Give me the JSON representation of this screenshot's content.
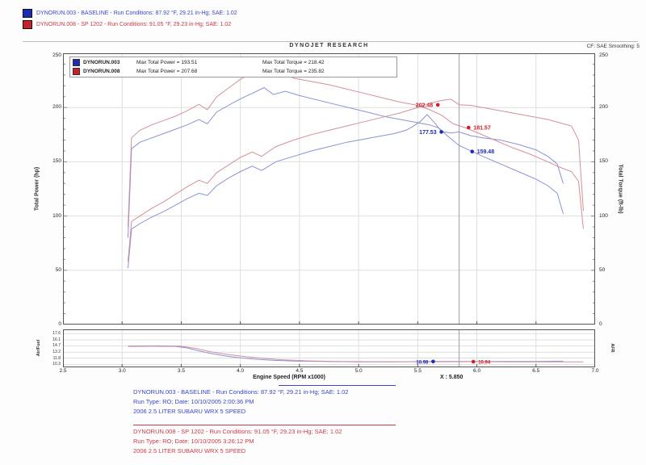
{
  "header_legend": {
    "runs": [
      {
        "swatch": "#1c2bb8",
        "text_color": "#3a46c8",
        "text": "DYNORUN.003 - BASELINE  -  Run Conditions: 87.92 °F, 29.21 in-Hg; SAE: 1.02"
      },
      {
        "swatch": "#c8202c",
        "text_color": "#cc3a46",
        "text": "DYNORUN.008 - SP 1202  -  Run Conditions: 91.05 °F, 29.23 in-Hg; SAE: 1.02"
      }
    ]
  },
  "chart_header": {
    "title": "DYNOJET RESEARCH",
    "correction": "CF: SAE    Smoothing: 5"
  },
  "inchart_legend": [
    {
      "swatch": "#1c2bb8",
      "run": "DYNORUN.003",
      "power": "Max Total Power = 193.51",
      "torque": "Max Total Torque = 218.42"
    },
    {
      "swatch": "#c8202c",
      "run": "DYNORUN.008",
      "power": "Max Total Power = 207.68",
      "torque": "Max Total Torque = 235.82"
    }
  ],
  "cursor_readout": "X : 5.850",
  "chart_data": [
    {
      "type": "line",
      "title": "DYNOJET RESEARCH",
      "xlabel": "Engine Speed (RPM x1000)",
      "ylabel": "Total Power (hp)",
      "ylabel_right": "Total Torque (ft-lb)",
      "xlim": [
        2.5,
        7.0
      ],
      "ylim": [
        0,
        250
      ],
      "x_ticks": [
        "2.5",
        "3.0",
        "3.5",
        "4.0",
        "4.5",
        "5.0",
        "5.5",
        "6.0",
        "6.5",
        "7.0"
      ],
      "y_ticks": [
        "250",
        "200",
        "150",
        "100",
        "50",
        "0"
      ],
      "grid": true,
      "legend_position": "top-left",
      "minor_step": 10,
      "cursor_x": 5.85,
      "marker_font": 7,
      "series": [
        {
          "name": "DYNORUN.003 Total Power (hp)",
          "color": "#8a92d4",
          "points": [
            [
              3.05,
              52
            ],
            [
              3.08,
              88
            ],
            [
              3.15,
              93
            ],
            [
              3.25,
              99
            ],
            [
              3.35,
              104
            ],
            [
              3.45,
              110
            ],
            [
              3.55,
              116
            ],
            [
              3.65,
              121
            ],
            [
              3.72,
              119
            ],
            [
              3.8,
              128
            ],
            [
              3.9,
              135
            ],
            [
              4.0,
              141
            ],
            [
              4.1,
              146
            ],
            [
              4.18,
              142
            ],
            [
              4.3,
              150
            ],
            [
              4.45,
              155
            ],
            [
              4.6,
              160
            ],
            [
              4.75,
              164
            ],
            [
              4.9,
              168
            ],
            [
              5.05,
              171
            ],
            [
              5.2,
              174
            ],
            [
              5.3,
              176
            ],
            [
              5.4,
              179
            ],
            [
              5.45,
              182
            ],
            [
              5.52,
              187
            ],
            [
              5.58,
              193.5
            ],
            [
              5.65,
              185
            ],
            [
              5.7,
              178
            ],
            [
              5.78,
              176.5
            ],
            [
              5.85,
              177.5
            ],
            [
              5.95,
              174
            ],
            [
              6.05,
              172
            ],
            [
              6.2,
              170
            ],
            [
              6.35,
              166
            ],
            [
              6.5,
              161
            ],
            [
              6.6,
              155
            ],
            [
              6.68,
              148
            ],
            [
              6.73,
              130
            ]
          ]
        },
        {
          "name": "DYNORUN.008 Total Power (hp)",
          "color": "#d4909a",
          "points": [
            [
              3.05,
              58
            ],
            [
              3.08,
              95
            ],
            [
              3.15,
              100
            ],
            [
              3.25,
              107
            ],
            [
              3.35,
              113
            ],
            [
              3.45,
              120
            ],
            [
              3.55,
              127
            ],
            [
              3.65,
              133
            ],
            [
              3.72,
              130
            ],
            [
              3.8,
              140
            ],
            [
              3.9,
              147
            ],
            [
              4.0,
              154
            ],
            [
              4.1,
              159
            ],
            [
              4.18,
              155
            ],
            [
              4.3,
              164
            ],
            [
              4.45,
              170
            ],
            [
              4.6,
              175
            ],
            [
              4.75,
              179
            ],
            [
              4.9,
              183
            ],
            [
              5.05,
              187
            ],
            [
              5.2,
              191
            ],
            [
              5.35,
              195
            ],
            [
              5.5,
              200
            ],
            [
              5.6,
              204
            ],
            [
              5.7,
              206.5
            ],
            [
              5.78,
              207.7
            ],
            [
              5.85,
              202.5
            ],
            [
              5.95,
              202
            ],
            [
              6.05,
              200
            ],
            [
              6.15,
              198
            ],
            [
              6.3,
              195
            ],
            [
              6.45,
              192
            ],
            [
              6.6,
              189
            ],
            [
              6.7,
              186
            ],
            [
              6.8,
              183
            ],
            [
              6.86,
              170
            ],
            [
              6.9,
              105
            ]
          ]
        },
        {
          "name": "DYNORUN.003 Total Torque (ft-lb)",
          "color": "#8a92d4",
          "points": [
            [
              3.05,
              80
            ],
            [
              3.08,
              162
            ],
            [
              3.15,
              168
            ],
            [
              3.25,
              172
            ],
            [
              3.35,
              176
            ],
            [
              3.45,
              180
            ],
            [
              3.55,
              184
            ],
            [
              3.65,
              189
            ],
            [
              3.72,
              185
            ],
            [
              3.8,
              196
            ],
            [
              3.9,
              202
            ],
            [
              4.0,
              208
            ],
            [
              4.1,
              213
            ],
            [
              4.2,
              218.4
            ],
            [
              4.28,
              212
            ],
            [
              4.38,
              215
            ],
            [
              4.5,
              211
            ],
            [
              4.65,
              207
            ],
            [
              4.8,
              203
            ],
            [
              4.95,
              199
            ],
            [
              5.1,
              195
            ],
            [
              5.25,
              191
            ],
            [
              5.4,
              188
            ],
            [
              5.5,
              186
            ],
            [
              5.6,
              184
            ],
            [
              5.68,
              181
            ],
            [
              5.75,
              174
            ],
            [
              5.85,
              165
            ],
            [
              5.96,
              159.5
            ],
            [
              6.05,
              155
            ],
            [
              6.2,
              148
            ],
            [
              6.35,
              141
            ],
            [
              6.5,
              134
            ],
            [
              6.6,
              128
            ],
            [
              6.68,
              121
            ],
            [
              6.73,
              102
            ]
          ]
        },
        {
          "name": "DYNORUN.008 Total Torque (ft-lb)",
          "color": "#d4909a",
          "points": [
            [
              3.05,
              90
            ],
            [
              3.08,
              172
            ],
            [
              3.15,
              179
            ],
            [
              3.25,
              184
            ],
            [
              3.35,
              188
            ],
            [
              3.45,
              192
            ],
            [
              3.55,
              197
            ],
            [
              3.65,
              203
            ],
            [
              3.72,
              198
            ],
            [
              3.8,
              210
            ],
            [
              3.9,
              218
            ],
            [
              4.0,
              226
            ],
            [
              4.08,
              231
            ],
            [
              4.15,
              235.8
            ],
            [
              4.25,
              228
            ],
            [
              4.35,
              232
            ],
            [
              4.45,
              227
            ],
            [
              4.6,
              224
            ],
            [
              4.75,
              221
            ],
            [
              4.9,
              217
            ],
            [
              5.05,
              213
            ],
            [
              5.2,
              209
            ],
            [
              5.35,
              205
            ],
            [
              5.5,
              202
            ],
            [
              5.6,
              198
            ],
            [
              5.7,
              193
            ],
            [
              5.8,
              185
            ],
            [
              5.9,
              181.5
            ],
            [
              6.0,
              177
            ],
            [
              6.15,
              170
            ],
            [
              6.3,
              163
            ],
            [
              6.45,
              157
            ],
            [
              6.6,
              150
            ],
            [
              6.7,
              145
            ],
            [
              6.8,
              141
            ],
            [
              6.86,
              132
            ],
            [
              6.9,
              88
            ]
          ]
        }
      ],
      "markers": [
        {
          "x": 5.67,
          "y": 202.48,
          "label": "202.48",
          "color": "#c8202c",
          "side": "left"
        },
        {
          "x": 5.7,
          "y": 177.53,
          "label": "177.53",
          "color": "#1c2bb8",
          "side": "left"
        },
        {
          "x": 5.93,
          "y": 181.57,
          "label": "181.57",
          "color": "#c8202c",
          "side": "right"
        },
        {
          "x": 5.96,
          "y": 159.48,
          "label": "159.48",
          "color": "#1c2bb8",
          "side": "right"
        }
      ]
    },
    {
      "type": "line",
      "ylabel": "Air/Fuel",
      "ylabel_right": "AFR",
      "xlim": [
        2.5,
        7.0
      ],
      "ylim": [
        9.6,
        18.6
      ],
      "x_ticks": [
        "2.5",
        "3.0",
        "3.5",
        "4.0",
        "4.5",
        "5.0",
        "5.5",
        "6.0",
        "6.5",
        "7.0"
      ],
      "y_ticks": [
        "17.6",
        "16.1",
        "14.7",
        "13.2",
        "11.8",
        "10.3"
      ],
      "grid": true,
      "cursor_x": 5.85,
      "marker_font": 6,
      "series": [
        {
          "name": "DYNORUN.003 Air/Fuel",
          "color": "#8a92d4",
          "points": [
            [
              3.05,
              14.55
            ],
            [
              3.25,
              14.6
            ],
            [
              3.45,
              14.55
            ],
            [
              3.55,
              14.2
            ],
            [
              3.65,
              13.5
            ],
            [
              3.75,
              12.9
            ],
            [
              3.85,
              12.4
            ],
            [
              3.95,
              12.0
            ],
            [
              4.1,
              11.6
            ],
            [
              4.25,
              11.3
            ],
            [
              4.45,
              11.1
            ],
            [
              4.7,
              11.0
            ],
            [
              5.0,
              10.9
            ],
            [
              5.3,
              10.9
            ],
            [
              5.63,
              10.98
            ],
            [
              5.9,
              11.0
            ],
            [
              6.2,
              11.0
            ],
            [
              6.5,
              11.0
            ],
            [
              6.73,
              11.05
            ]
          ]
        },
        {
          "name": "DYNORUN.008 Air/Fuel",
          "color": "#d4909a",
          "points": [
            [
              3.05,
              14.65
            ],
            [
              3.3,
              14.7
            ],
            [
              3.5,
              14.6
            ],
            [
              3.62,
              14.1
            ],
            [
              3.75,
              13.3
            ],
            [
              3.9,
              12.6
            ],
            [
              4.05,
              12.1
            ],
            [
              4.2,
              11.7
            ],
            [
              4.35,
              11.4
            ],
            [
              4.55,
              11.15
            ],
            [
              4.8,
              11.0
            ],
            [
              5.1,
              10.95
            ],
            [
              5.5,
              10.9
            ],
            [
              5.97,
              10.94
            ],
            [
              6.3,
              10.9
            ],
            [
              6.6,
              10.9
            ],
            [
              6.9,
              10.9
            ]
          ]
        }
      ],
      "markers": [
        {
          "x": 5.63,
          "y": 10.98,
          "label": "10.98",
          "color": "#1c2bb8",
          "side": "left"
        },
        {
          "x": 5.97,
          "y": 10.94,
          "label": "10.94",
          "color": "#c8202c",
          "side": "right"
        }
      ]
    }
  ],
  "footer_blocks": [
    {
      "color": "#3a46c8",
      "rule_color": "#3a46c8",
      "lines": [
        "DYNORUN.003 - BASELINE  -  Run Conditions: 87.92 °F, 29.21 in-Hg; SAE: 1.02",
        "Run Type: RO; Date: 10/10/2005 2:00:36 PM",
        "2006 2.5 LITER SUBARU WRX 5 SPEED"
      ]
    },
    {
      "color": "#cc3a46",
      "rule_color": "#cc3a46",
      "lines": [
        "DYNORUN.008 - SP 1202  -  Run Conditions: 91.05 °F, 29.23 in-Hg; SAE: 1.02",
        "Run Type: RO; Date: 10/10/2005 3:26:12 PM",
        "2006 2.5 LITER SUBARU WRX 5 SPEED"
      ]
    }
  ]
}
